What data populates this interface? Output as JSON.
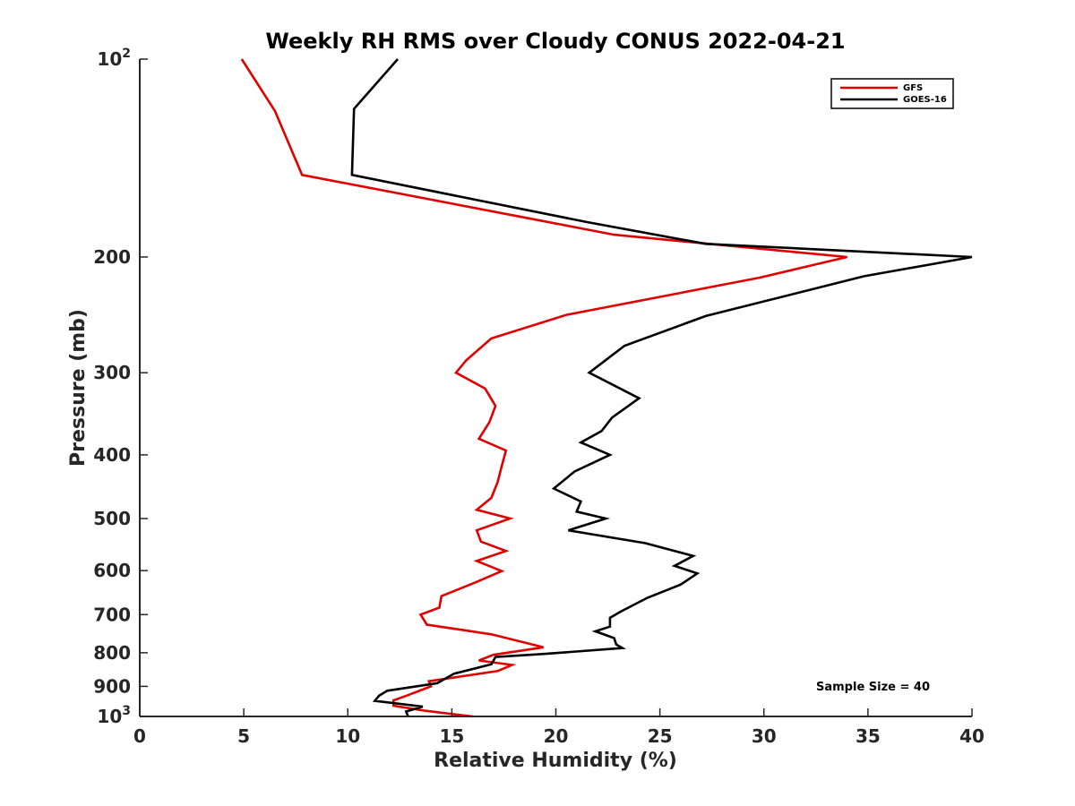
{
  "chart_data": {
    "type": "line",
    "title": "Weekly RH RMS over Cloudy CONUS 2022-04-21",
    "xlabel": "Relative Humidity (%)",
    "ylabel": "Pressure (mb)",
    "xlim": [
      0,
      40
    ],
    "ylim": [
      100,
      1000
    ],
    "y_scale": "log",
    "y_reversed": true,
    "grid": false,
    "legend_position": "top-right",
    "x_ticks": [
      "0",
      "5",
      "10",
      "15",
      "20",
      "25",
      "30",
      "35",
      "40"
    ],
    "y_ticks": [
      {
        "value": 100,
        "base": "10",
        "exp": "2"
      },
      {
        "value": 200,
        "label": "200"
      },
      {
        "value": 300,
        "label": "300"
      },
      {
        "value": 400,
        "label": "400"
      },
      {
        "value": 500,
        "label": "500"
      },
      {
        "value": 600,
        "label": "600"
      },
      {
        "value": 700,
        "label": "700"
      },
      {
        "value": 800,
        "label": "800"
      },
      {
        "value": 900,
        "label": "900"
      },
      {
        "value": 1000,
        "base": "10",
        "exp": "3"
      }
    ],
    "series": [
      {
        "name": "GFS",
        "color": "#e00000",
        "points": [
          [
            4.9,
            100
          ],
          [
            6.5,
            120
          ],
          [
            7.8,
            150
          ],
          [
            18.0,
            173
          ],
          [
            22.8,
            185
          ],
          [
            34.0,
            200
          ],
          [
            29.8,
            215
          ],
          [
            20.5,
            245
          ],
          [
            16.9,
            266
          ],
          [
            15.7,
            287
          ],
          [
            15.2,
            300
          ],
          [
            16.6,
            317
          ],
          [
            17.1,
            337
          ],
          [
            16.8,
            357
          ],
          [
            16.3,
            378
          ],
          [
            17.6,
            394
          ],
          [
            17.4,
            416
          ],
          [
            17.2,
            440
          ],
          [
            16.9,
            465
          ],
          [
            16.2,
            485
          ],
          [
            17.8,
            500
          ],
          [
            16.2,
            521
          ],
          [
            16.4,
            542
          ],
          [
            17.6,
            560
          ],
          [
            16.2,
            580
          ],
          [
            17.4,
            601
          ],
          [
            16.1,
            626
          ],
          [
            14.5,
            656
          ],
          [
            14.4,
            683
          ],
          [
            13.5,
            700
          ],
          [
            13.8,
            725
          ],
          [
            16.9,
            750
          ],
          [
            19.4,
            785
          ],
          [
            17.0,
            806
          ],
          [
            16.3,
            822
          ],
          [
            17.9,
            835
          ],
          [
            17.2,
            853
          ],
          [
            13.9,
            884
          ],
          [
            14.0,
            900
          ],
          [
            12.9,
            928
          ],
          [
            12.2,
            945
          ],
          [
            12.2,
            963
          ],
          [
            13.7,
            980
          ],
          [
            16.0,
            1000
          ]
        ]
      },
      {
        "name": "GOES-16",
        "color": "#000000",
        "points": [
          [
            12.4,
            100
          ],
          [
            10.3,
            119
          ],
          [
            10.2,
            150
          ],
          [
            21.5,
            177
          ],
          [
            27.2,
            191
          ],
          [
            40.0,
            200
          ],
          [
            34.8,
            214
          ],
          [
            27.2,
            246
          ],
          [
            23.3,
            273
          ],
          [
            21.6,
            300
          ],
          [
            24.0,
            328
          ],
          [
            22.7,
            351
          ],
          [
            22.2,
            368
          ],
          [
            21.2,
            383
          ],
          [
            22.6,
            400
          ],
          [
            20.9,
            424
          ],
          [
            19.9,
            450
          ],
          [
            21.2,
            471
          ],
          [
            21.0,
            488
          ],
          [
            22.4,
            500
          ],
          [
            20.6,
            521
          ],
          [
            24.3,
            545
          ],
          [
            26.6,
            570
          ],
          [
            25.7,
            590
          ],
          [
            26.8,
            606
          ],
          [
            26.0,
            630
          ],
          [
            24.4,
            660
          ],
          [
            23.1,
            693
          ],
          [
            22.6,
            708
          ],
          [
            22.6,
            730
          ],
          [
            21.9,
            742
          ],
          [
            22.8,
            760
          ],
          [
            22.9,
            777
          ],
          [
            23.2,
            787
          ],
          [
            19.5,
            803
          ],
          [
            17.1,
            812
          ],
          [
            16.9,
            833
          ],
          [
            15.1,
            861
          ],
          [
            14.3,
            890
          ],
          [
            11.9,
            914
          ],
          [
            11.5,
            930
          ],
          [
            11.3,
            947
          ],
          [
            13.6,
            966
          ],
          [
            12.8,
            983
          ],
          [
            12.9,
            1000
          ]
        ]
      }
    ],
    "annotation": "Sample Size = 40"
  }
}
